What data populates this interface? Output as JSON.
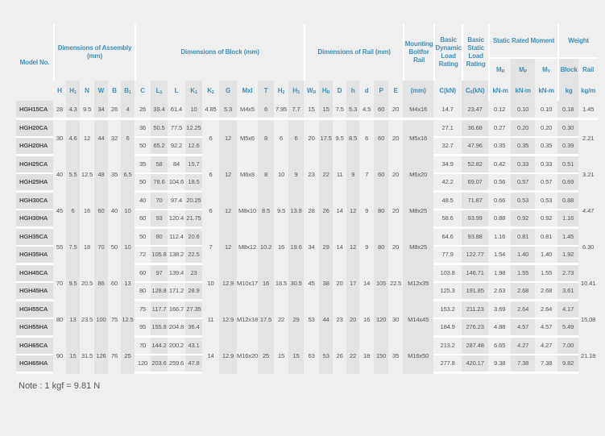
{
  "header": {
    "model": "Model No.",
    "assembly": "Dimensions of Assembly (mm)",
    "block": "Dimensions of Block (mm)",
    "rail": "Dimensions of Rail (mm)",
    "bolt": "Mounting Boltfor Rail",
    "dynamic": "Basic Dynamic Load Rating",
    "static": "Basic Static Load Rating",
    "moment": "Static Rated Moment",
    "weight": "Weight",
    "weight_block": "Block",
    "weight_rail": "Rail",
    "knm": "kN-m",
    "kg": "kg",
    "kgm": "kg/m"
  },
  "columns": [
    {
      "key": "H",
      "main": "H",
      "sub": ""
    },
    {
      "key": "H1",
      "main": "H",
      "sub": "1"
    },
    {
      "key": "N",
      "main": "N",
      "sub": ""
    },
    {
      "key": "W",
      "main": "W",
      "sub": ""
    },
    {
      "key": "B",
      "main": "B",
      "sub": ""
    },
    {
      "key": "B1",
      "main": "B",
      "sub": "1"
    },
    {
      "key": "C",
      "main": "C",
      "sub": ""
    },
    {
      "key": "L1",
      "main": "L",
      "sub": "1"
    },
    {
      "key": "L",
      "main": "L",
      "sub": ""
    },
    {
      "key": "K1",
      "main": "K",
      "sub": "1"
    },
    {
      "key": "K2",
      "main": "K",
      "sub": "2"
    },
    {
      "key": "G",
      "main": "G",
      "sub": ""
    },
    {
      "key": "Mxl",
      "main": "Mxl",
      "sub": ""
    },
    {
      "key": "T",
      "main": "T",
      "sub": ""
    },
    {
      "key": "H2",
      "main": "H",
      "sub": "2"
    },
    {
      "key": "H3",
      "main": "H",
      "sub": "3"
    },
    {
      "key": "WR",
      "main": "W",
      "sub": "R"
    },
    {
      "key": "HR",
      "main": "H",
      "sub": "R"
    },
    {
      "key": "D",
      "main": "D",
      "sub": ""
    },
    {
      "key": "h",
      "main": "h",
      "sub": ""
    },
    {
      "key": "d",
      "main": "d",
      "sub": ""
    },
    {
      "key": "P",
      "main": "P",
      "sub": ""
    },
    {
      "key": "E",
      "main": "E",
      "sub": ""
    },
    {
      "key": "bolt",
      "main": "(mm)",
      "sub": ""
    },
    {
      "key": "Cdyn",
      "main": "C(kN)",
      "sub": ""
    },
    {
      "key": "C0",
      "main": "C",
      "sub": "0",
      "after": "(kN)"
    },
    {
      "key": "MR",
      "main": "M",
      "sub": "R"
    },
    {
      "key": "MP",
      "main": "M",
      "sub": "P"
    },
    {
      "key": "MY",
      "main": "M",
      "sub": "Y"
    },
    {
      "key": "kg",
      "main": "",
      "sub": ""
    },
    {
      "key": "rail",
      "main": "",
      "sub": ""
    }
  ],
  "groups": [
    {
      "shared": {},
      "models": [
        {
          "model": "HGH15CA",
          "H": "28",
          "H1": "4.3",
          "N": "9.5",
          "W": "34",
          "B": "26",
          "B1": "4",
          "C": "26",
          "L1": "39.4",
          "L": "61.4",
          "K1": "10",
          "K2": "4.85",
          "G": "5.3",
          "Mxl": "M4x5",
          "T": "6",
          "H2": "7.95",
          "H3": "7.7",
          "WR": "15",
          "HR": "15",
          "D": "7.5",
          "h": "5.3",
          "d": "4.5",
          "P": "60",
          "E": "20",
          "bolt": "M4x16",
          "Cdyn": "14.7",
          "C0": "23.47",
          "MR": "0.12",
          "MP": "0.10",
          "MY": "0.10",
          "kg": "0.18",
          "rail": "1.45"
        }
      ]
    },
    {
      "shared": {
        "H": "30",
        "H1": "4.6",
        "N": "12",
        "W": "44",
        "B": "32",
        "B1": "6",
        "K2": "6",
        "G": "12",
        "Mxl": "M5x6",
        "T": "8",
        "H2": "6",
        "H3": "6",
        "WR": "20",
        "HR": "17.5",
        "D": "9.5",
        "h": "8.5",
        "d": "6",
        "P": "60",
        "E": "20",
        "bolt": "M5x16",
        "rail": "2.21"
      },
      "models": [
        {
          "model": "HGH20CA",
          "C": "36",
          "L1": "50.5",
          "L": "77.5",
          "K1": "12.25",
          "Cdyn": "27.1",
          "C0": "36.68",
          "MR": "0.27",
          "MP": "0.20",
          "MY": "0.20",
          "kg": "0.30"
        },
        {
          "model": "HGH20HA",
          "C": "50",
          "L1": "65.2",
          "L": "92.2",
          "K1": "12.6",
          "Cdyn": "32.7",
          "C0": "47.96",
          "MR": "0.35",
          "MP": "0.35",
          "MY": "0.35",
          "kg": "0.39"
        }
      ]
    },
    {
      "shared": {
        "H": "40",
        "H1": "5.5",
        "N": "12.5",
        "W": "48",
        "B": "35",
        "B1": "6.5",
        "K2": "6",
        "G": "12",
        "Mxl": "M6x8",
        "T": "8",
        "H2": "10",
        "H3": "9",
        "WR": "23",
        "HR": "22",
        "D": "11",
        "h": "9",
        "d": "7",
        "P": "60",
        "E": "20",
        "bolt": "M6x20",
        "rail": "3.21"
      },
      "models": [
        {
          "model": "HGH25CA",
          "C": "35",
          "L1": "58",
          "L": "84",
          "K1": "15.7",
          "Cdyn": "34.9",
          "C0": "52.82",
          "MR": "0.42",
          "MP": "0.33",
          "MY": "0.33",
          "kg": "0.51"
        },
        {
          "model": "HGH25HA",
          "C": "50",
          "L1": "78.6",
          "L": "104.6",
          "K1": "18.5",
          "Cdyn": "42.2",
          "C0": "69.07",
          "MR": "0.56",
          "MP": "0.57",
          "MY": "0.57",
          "kg": "0.69"
        }
      ]
    },
    {
      "shared": {
        "H": "45",
        "H1": "6",
        "N": "16",
        "W": "60",
        "B": "40",
        "B1": "10",
        "K2": "6",
        "G": "12",
        "Mxl": "M8x10",
        "T": "8.5",
        "H2": "9.5",
        "H3": "13.8",
        "WR": "28",
        "HR": "26",
        "D": "14",
        "h": "12",
        "d": "9",
        "P": "80",
        "E": "20",
        "bolt": "M8x25",
        "rail": "4.47"
      },
      "models": [
        {
          "model": "HGH30CA",
          "C": "40",
          "L1": "70",
          "L": "97.4",
          "K1": "20.25",
          "Cdyn": "48.5",
          "C0": "71.87",
          "MR": "0.66",
          "MP": "0.53",
          "MY": "0.53",
          "kg": "0.88"
        },
        {
          "model": "HGH30HA",
          "C": "60",
          "L1": "93",
          "L": "120.4",
          "K1": "21.75",
          "Cdyn": "58.6",
          "C0": "93.99",
          "MR": "0.88",
          "MP": "0.92",
          "MY": "0.92",
          "kg": "1.16"
        }
      ]
    },
    {
      "shared": {
        "H": "55",
        "H1": "7.5",
        "N": "18",
        "W": "70",
        "B": "50",
        "B1": "10",
        "K2": "7",
        "G": "12",
        "Mxl": "M8x12",
        "T": "10.2",
        "H2": "16",
        "H3": "19.6",
        "WR": "34",
        "HR": "29",
        "D": "14",
        "h": "12",
        "d": "9",
        "P": "80",
        "E": "20",
        "bolt": "M8x25",
        "rail": "6.30"
      },
      "models": [
        {
          "model": "HGH35CA",
          "C": "50",
          "L1": "80",
          "L": "112.4",
          "K1": "20.6",
          "Cdyn": "64.6",
          "C0": "93.88",
          "MR": "1.16",
          "MP": "0.81",
          "MY": "0.81",
          "kg": "1.45"
        },
        {
          "model": "HGH35HA",
          "C": "72",
          "L1": "105.8",
          "L": "138.2",
          "K1": "22.5",
          "Cdyn": "77.9",
          "C0": "122.77",
          "MR": "1.54",
          "MP": "1.40",
          "MY": "1.40",
          "kg": "1.92"
        }
      ]
    },
    {
      "shared": {
        "H": "70",
        "H1": "9.5",
        "N": "20.5",
        "W": "86",
        "B": "60",
        "B1": "13",
        "K2": "10",
        "G": "12.9",
        "Mxl": "M10x17",
        "T": "16",
        "H2": "18.5",
        "H3": "30.5",
        "WR": "45",
        "HR": "38",
        "D": "20",
        "h": "17",
        "d": "14",
        "P": "105",
        "E": "22.5",
        "bolt": "M12x35",
        "rail": "10.41"
      },
      "models": [
        {
          "model": "HGH45CA",
          "C": "60",
          "L1": "97",
          "L": "139.4",
          "K1": "23",
          "Cdyn": "103.8",
          "C0": "146.71",
          "MR": "1.98",
          "MP": "1.55",
          "MY": "1.55",
          "kg": "2.73"
        },
        {
          "model": "HGH45HA",
          "C": "80",
          "L1": "128.8",
          "L": "171.2",
          "K1": "28.9",
          "Cdyn": "125.3",
          "C0": "191.85",
          "MR": "2.63",
          "MP": "2.68",
          "MY": "2.68",
          "kg": "3.61"
        }
      ]
    },
    {
      "shared": {
        "H": "80",
        "H1": "13",
        "N": "23.5",
        "W": "100",
        "B": "75",
        "B1": "12.5",
        "K2": "11",
        "G": "12.9",
        "Mxl": "M12x18",
        "T": "17.5",
        "H2": "22",
        "H3": "29",
        "WR": "53",
        "HR": "44",
        "D": "23",
        "h": "20",
        "d": "16",
        "P": "120",
        "E": "30",
        "bolt": "M14x45",
        "rail": "15.08"
      },
      "models": [
        {
          "model": "HGH55CA",
          "C": "75",
          "L1": "117.7",
          "L": "166.7",
          "K1": "27.35",
          "Cdyn": "153.2",
          "C0": "211.23",
          "MR": "3.69",
          "MP": "2.64",
          "MY": "2.64",
          "kg": "4.17"
        },
        {
          "model": "HGH55HA",
          "C": "95",
          "L1": "155.8",
          "L": "204.8",
          "K1": "36.4",
          "Cdyn": "184.9",
          "C0": "276.23",
          "MR": "4.88",
          "MP": "4.57",
          "MY": "4.57",
          "kg": "5.49"
        }
      ]
    },
    {
      "shared": {
        "H": "90",
        "H1": "15",
        "N": "31.5",
        "W": "126",
        "B": "76",
        "B1": "25",
        "K2": "14",
        "G": "12.9",
        "Mxl": "M16x20",
        "T": "25",
        "H2": "15",
        "H3": "15",
        "WR": "63",
        "HR": "53",
        "D": "26",
        "h": "22",
        "d": "18",
        "P": "150",
        "E": "35",
        "bolt": "M16x50",
        "rail": "21.18"
      },
      "models": [
        {
          "model": "HGH65CA",
          "C": "70",
          "L1": "144.2",
          "L": "200.2",
          "K1": "43.1",
          "Cdyn": "213.2",
          "C0": "287.48",
          "MR": "6.65",
          "MP": "4.27",
          "MY": "4.27",
          "kg": "7.00"
        },
        {
          "model": "HGH65HA",
          "C": "120",
          "L1": "203.6",
          "L": "259.6",
          "K1": "47.8",
          "Cdyn": "277.8",
          "C0": "420.17",
          "MR": "9.38",
          "MP": "7.38",
          "MY": "7.38",
          "kg": "9.82"
        }
      ]
    }
  ],
  "note": "Note : 1 kgf = 9.81 N"
}
